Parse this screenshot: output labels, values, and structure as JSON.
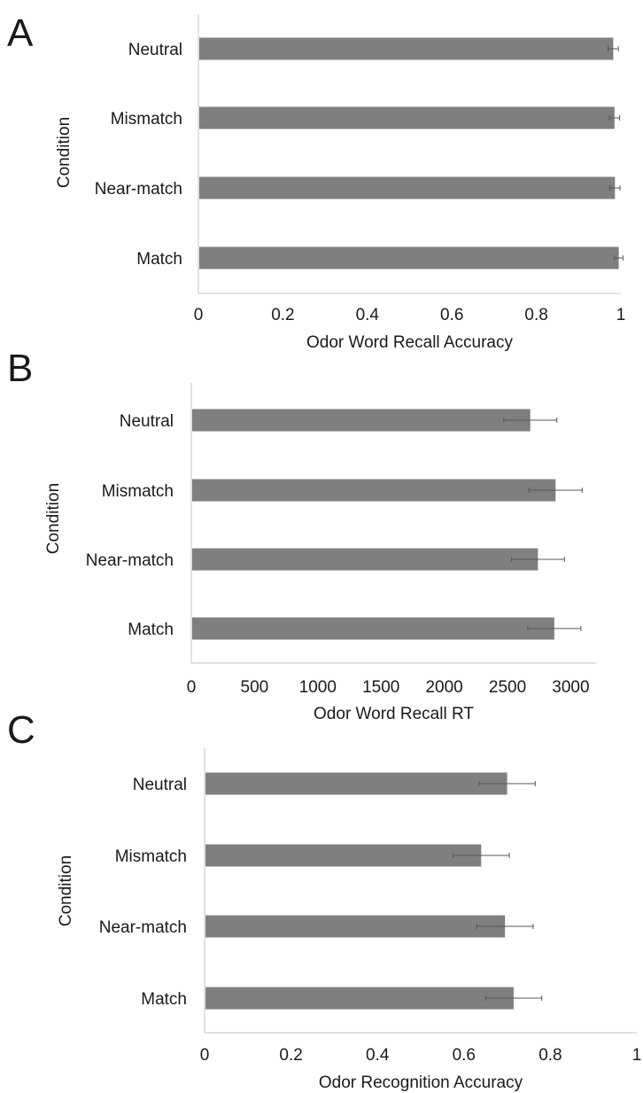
{
  "chart_data": [
    {
      "type": "bar",
      "orientation": "horizontal",
      "panel_label": "A",
      "categories": [
        "Neutral",
        "Mismatch",
        "Near-match",
        "Match"
      ],
      "values": [
        0.982,
        0.985,
        0.986,
        0.995
      ],
      "errors": [
        0.012,
        0.012,
        0.012,
        0.01
      ],
      "xlabel": "Odor Word Recall Accuracy",
      "ylabel": "Condition",
      "xlim": [
        0,
        1
      ],
      "xticks": [
        0,
        0.2,
        0.4,
        0.6,
        0.8,
        1
      ],
      "tick_labels": [
        "0",
        "0.2",
        "0.4",
        "0.6",
        "0.8",
        "1"
      ],
      "bar_color": "#7f7f7f",
      "grid": false
    },
    {
      "type": "bar",
      "orientation": "horizontal",
      "panel_label": "B",
      "categories": [
        "Neutral",
        "Mismatch",
        "Near-match",
        "Match"
      ],
      "values": [
        2680,
        2880,
        2740,
        2870
      ],
      "errors": [
        210,
        210,
        210,
        210
      ],
      "xlabel": "Odor Word Recall RT",
      "ylabel": "Condition",
      "xlim": [
        0,
        3200
      ],
      "xticks": [
        0,
        500,
        1000,
        1500,
        2000,
        2500,
        3000
      ],
      "tick_labels": [
        "0",
        "500",
        "1000",
        "1500",
        "2000",
        "2500",
        "3000"
      ],
      "bar_color": "#7f7f7f",
      "grid": false
    },
    {
      "type": "bar",
      "orientation": "horizontal",
      "panel_label": "C",
      "categories": [
        "Neutral",
        "Mismatch",
        "Near-match",
        "Match"
      ],
      "values": [
        0.7,
        0.64,
        0.695,
        0.715
      ],
      "errors": [
        0.065,
        0.065,
        0.065,
        0.065
      ],
      "xlabel": "Odor Recognition Accuracy",
      "ylabel": "Condition",
      "xlim": [
        0,
        1
      ],
      "xticks": [
        0,
        0.2,
        0.4,
        0.6,
        0.8,
        1
      ],
      "tick_labels": [
        "0",
        "0.2",
        "0.4",
        "0.6",
        "0.8",
        "1"
      ],
      "bar_color": "#7f7f7f",
      "grid": false
    }
  ]
}
